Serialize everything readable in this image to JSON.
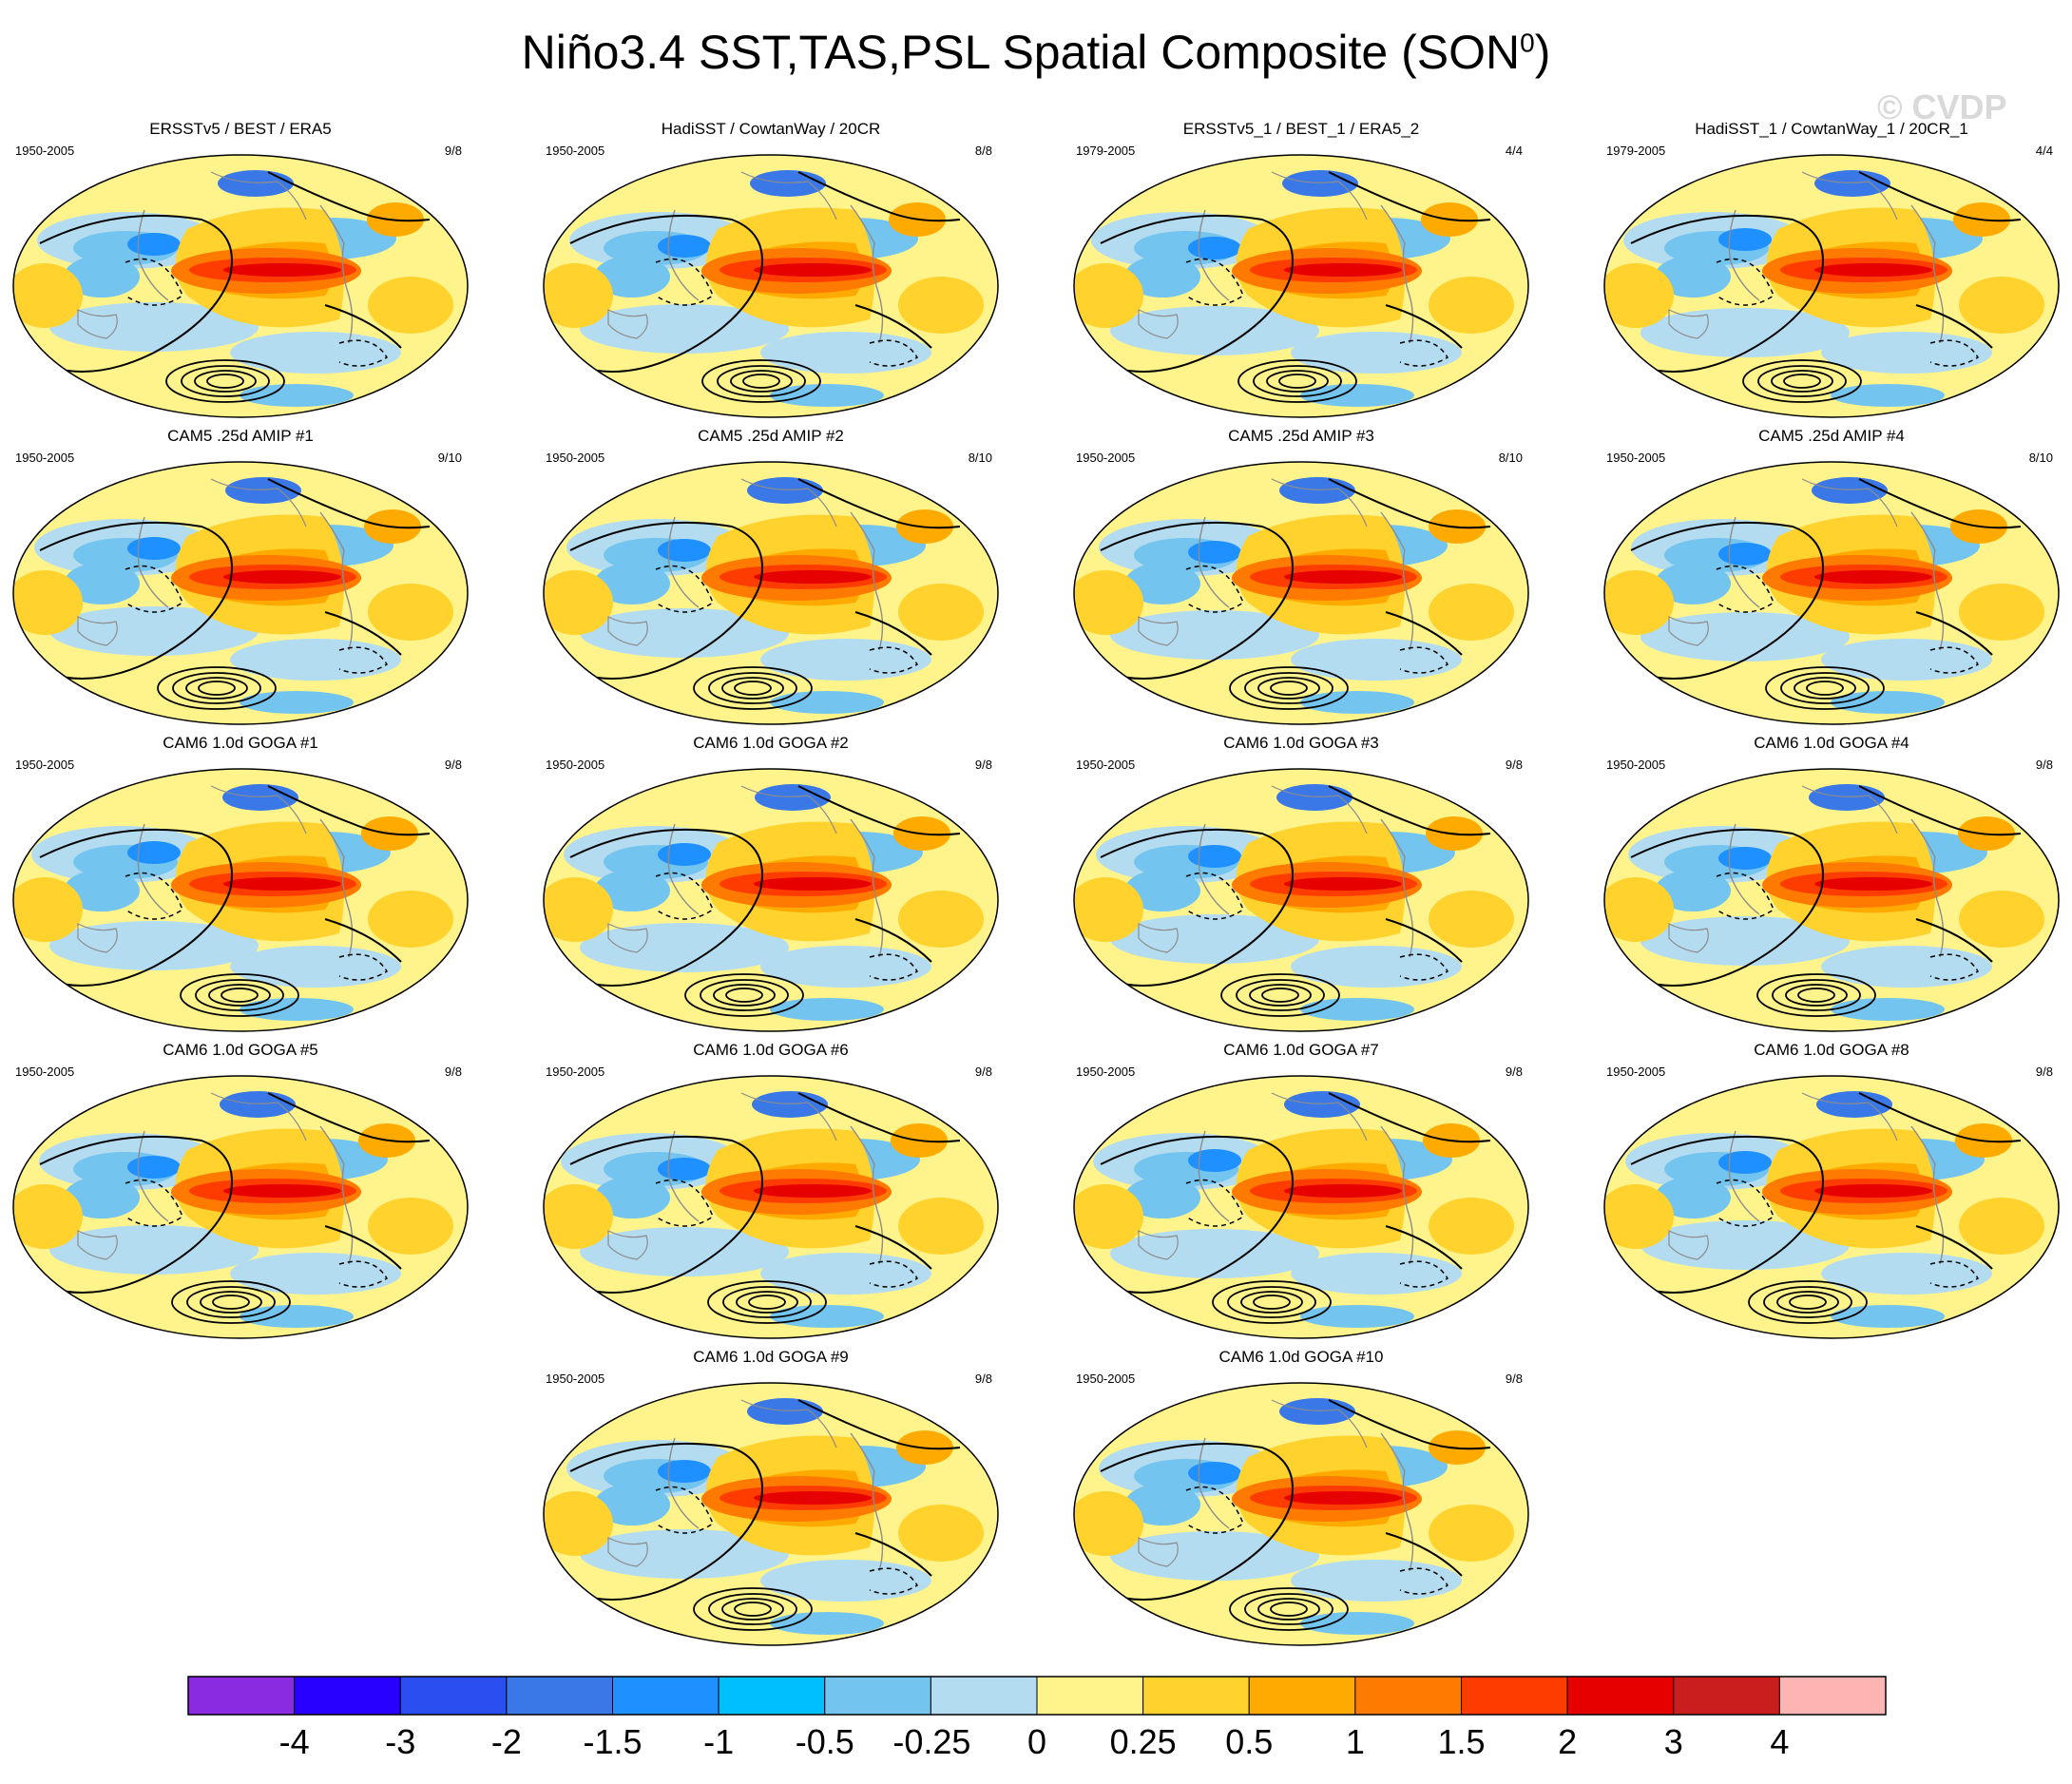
{
  "figure": {
    "title_main": "Niño3.4 SST,TAS,PSL Spatial Composite (SON",
    "title_superscript": "0",
    "title_close": ")",
    "watermark": "© CVDP"
  },
  "panels": [
    {
      "title": "ERSSTv5 / BEST / ERA5",
      "period": "1950-2005",
      "count": "9/8"
    },
    {
      "title": "HadiSST / CowtanWay / 20CR",
      "period": "1950-2005",
      "count": "8/8"
    },
    {
      "title": "ERSSTv5_1 / BEST_1 / ERA5_2",
      "period": "1979-2005",
      "count": "4/4"
    },
    {
      "title": "HadiSST_1 / CowtanWay_1 / 20CR_1",
      "period": "1979-2005",
      "count": "4/4"
    },
    {
      "title": "CAM5 .25d AMIP #1",
      "period": "1950-2005",
      "count": "9/10"
    },
    {
      "title": "CAM5 .25d AMIP #2",
      "period": "1950-2005",
      "count": "8/10"
    },
    {
      "title": "CAM5 .25d AMIP #3",
      "period": "1950-2005",
      "count": "8/10"
    },
    {
      "title": "CAM5 .25d AMIP #4",
      "period": "1950-2005",
      "count": "8/10"
    },
    {
      "title": "CAM6 1.0d GOGA #1",
      "period": "1950-2005",
      "count": "9/8"
    },
    {
      "title": "CAM6 1.0d GOGA #2",
      "period": "1950-2005",
      "count": "9/8"
    },
    {
      "title": "CAM6 1.0d GOGA #3",
      "period": "1950-2005",
      "count": "9/8"
    },
    {
      "title": "CAM6 1.0d GOGA #4",
      "period": "1950-2005",
      "count": "9/8"
    },
    {
      "title": "CAM6 1.0d GOGA #5",
      "period": "1950-2005",
      "count": "9/8"
    },
    {
      "title": "CAM6 1.0d GOGA #6",
      "period": "1950-2005",
      "count": "9/8"
    },
    {
      "title": "CAM6 1.0d GOGA #7",
      "period": "1950-2005",
      "count": "9/8"
    },
    {
      "title": "CAM6 1.0d GOGA #8",
      "period": "1950-2005",
      "count": "9/8"
    },
    {
      "title": "CAM6 1.0d GOGA #9",
      "period": "1950-2005",
      "count": "9/8"
    },
    {
      "title": "CAM6 1.0d GOGA #10",
      "period": "1950-2005",
      "count": "9/8"
    }
  ],
  "colorbar": {
    "labels": [
      "-4",
      "-3",
      "-2",
      "-1.5",
      "-1",
      "-0.5",
      "-0.25",
      "0",
      "0.25",
      "0.5",
      "1",
      "1.5",
      "2",
      "3",
      "4"
    ],
    "colors": [
      "#8a2be2",
      "#2800ff",
      "#2a4ef0",
      "#3a78e8",
      "#1e90ff",
      "#00bfff",
      "#73c4ee",
      "#b4dcf0",
      "#fff48c",
      "#ffd22e",
      "#ffaa00",
      "#ff7a00",
      "#ff3c00",
      "#e60000",
      "#c81e1e",
      "#ffb4b4"
    ]
  }
}
